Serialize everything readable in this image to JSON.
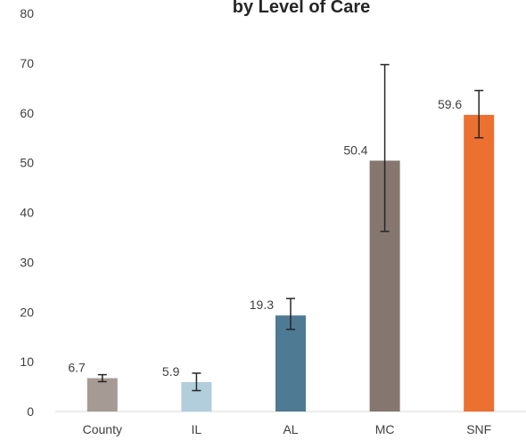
{
  "chart_data": {
    "type": "bar",
    "title": "by Level of Care",
    "xlabel": "",
    "ylabel": "",
    "ylim": [
      0,
      80
    ],
    "yticks": [
      0,
      10,
      20,
      30,
      40,
      50,
      60,
      70,
      80
    ],
    "grid": false,
    "categories": [
      "County",
      "IL",
      "AL",
      "MC",
      "SNF"
    ],
    "values": [
      6.7,
      5.9,
      19.3,
      50.4,
      59.6
    ],
    "value_labels": [
      "6.7",
      "5.9",
      "19.3",
      "50.4",
      "59.6"
    ],
    "error_low": [
      6.0,
      4.2,
      16.5,
      36.2,
      55.0
    ],
    "error_high": [
      7.4,
      7.7,
      22.7,
      69.7,
      64.5
    ],
    "colors": [
      "#a69a94",
      "#b2cddb",
      "#4f7a94",
      "#85776f",
      "#ec7030"
    ],
    "error_bar_color": "#262626"
  }
}
